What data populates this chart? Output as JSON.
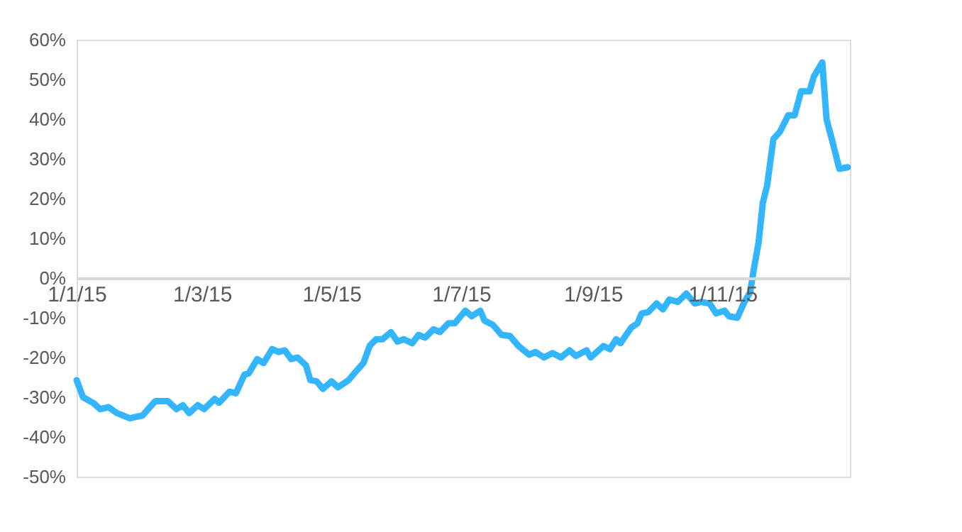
{
  "chart_data": {
    "type": "line",
    "x": [
      "2015-01-01",
      "2015-01-04",
      "2015-01-09",
      "2015-01-12",
      "2015-01-16",
      "2015-01-20",
      "2015-01-26",
      "2015-02-01",
      "2015-02-07",
      "2015-02-13",
      "2015-02-17",
      "2015-02-20",
      "2015-02-23",
      "2015-02-27",
      "2015-03-02",
      "2015-03-07",
      "2015-03-09",
      "2015-03-14",
      "2015-03-17",
      "2015-03-21",
      "2015-03-23",
      "2015-03-27",
      "2015-03-30",
      "2015-04-03",
      "2015-04-06",
      "2015-04-09",
      "2015-04-12",
      "2015-04-15",
      "2015-04-19",
      "2015-04-21",
      "2015-04-24",
      "2015-04-27",
      "2015-05-01",
      "2015-05-04",
      "2015-05-09",
      "2015-05-13",
      "2015-05-16",
      "2015-05-19",
      "2015-05-22",
      "2015-05-25",
      "2015-05-29",
      "2015-06-01",
      "2015-06-04",
      "2015-06-08",
      "2015-06-11",
      "2015-06-14",
      "2015-06-18",
      "2015-06-21",
      "2015-06-25",
      "2015-06-28",
      "2015-07-03",
      "2015-07-06",
      "2015-07-10",
      "2015-07-12",
      "2015-07-16",
      "2015-07-20",
      "2015-07-24",
      "2015-07-28",
      "2015-08-02",
      "2015-08-05",
      "2015-08-09",
      "2015-08-13",
      "2015-08-17",
      "2015-08-21",
      "2015-08-24",
      "2015-08-29",
      "2015-08-31",
      "2015-09-06",
      "2015-09-09",
      "2015-09-12",
      "2015-09-14",
      "2015-09-19",
      "2015-09-22",
      "2015-09-24",
      "2015-09-27",
      "2015-10-01",
      "2015-10-04",
      "2015-10-07",
      "2015-10-11",
      "2015-10-15",
      "2015-10-19",
      "2015-10-22",
      "2015-10-26",
      "2015-10-29",
      "2015-11-02",
      "2015-11-04",
      "2015-11-08",
      "2015-11-11",
      "2015-11-14",
      "2015-11-16",
      "2015-11-18",
      "2015-11-20",
      "2015-11-22",
      "2015-11-25",
      "2015-11-28",
      "2015-12-02",
      "2015-12-05",
      "2015-12-08",
      "2015-12-12",
      "2015-12-14",
      "2015-12-18",
      "2015-12-20",
      "2015-12-23",
      "2015-12-26",
      "2015-12-30"
    ],
    "series": [
      {
        "color": "#33b5ff",
        "values": [
          -25.7,
          -30,
          -31.5,
          -33,
          -32.5,
          -34,
          -35.3,
          -34.6,
          -31,
          -31,
          -33,
          -32,
          -34,
          -32,
          -33,
          -30.4,
          -31.4,
          -28.6,
          -29,
          -24.3,
          -24,
          -20.4,
          -21.4,
          -17.9,
          -18.6,
          -18.2,
          -20.4,
          -20,
          -22,
          -25.7,
          -26,
          -27.9,
          -26,
          -27.5,
          -25.7,
          -23.2,
          -21.4,
          -17,
          -15.4,
          -15.4,
          -13.6,
          -16,
          -15.4,
          -16.4,
          -14.3,
          -15,
          -12.9,
          -13.6,
          -11.4,
          -11.4,
          -8.2,
          -9.6,
          -8.2,
          -10.7,
          -11.8,
          -14.3,
          -14.6,
          -17.1,
          -19.3,
          -18.6,
          -20,
          -18.9,
          -20,
          -18.2,
          -19.6,
          -18.2,
          -20,
          -17.1,
          -17.9,
          -15.4,
          -16.4,
          -12.5,
          -11.4,
          -8.9,
          -8.6,
          -6.4,
          -7.9,
          -5.4,
          -6,
          -3.9,
          -6.4,
          -6,
          -6.4,
          -8.9,
          -8.2,
          -9.6,
          -10,
          -6.4,
          -3.6,
          2.9,
          8.9,
          18.9,
          23.2,
          35,
          36.8,
          41,
          41,
          47,
          47,
          50.7,
          54.3,
          40,
          33.9,
          27.5,
          27.9
        ]
      }
    ],
    "xlim": [
      "2015-01-01",
      "2015-12-31"
    ],
    "xticks": [
      {
        "value": "2015-01-01",
        "label": "1/1/15"
      },
      {
        "value": "2015-03-01",
        "label": "1/3/15"
      },
      {
        "value": "2015-05-01",
        "label": "1/5/15"
      },
      {
        "value": "2015-07-01",
        "label": "1/7/15"
      },
      {
        "value": "2015-09-01",
        "label": "1/9/15"
      },
      {
        "value": "2015-11-01",
        "label": "1/11/15"
      }
    ],
    "ylim": [
      -50,
      60
    ],
    "yticks": [
      {
        "value": -50,
        "label": "-50%"
      },
      {
        "value": -40,
        "label": "-40%"
      },
      {
        "value": -30,
        "label": "-30%"
      },
      {
        "value": -20,
        "label": "-20%"
      },
      {
        "value": -10,
        "label": "-10%"
      },
      {
        "value": 0,
        "label": "0%"
      },
      {
        "value": 10,
        "label": "10%"
      },
      {
        "value": 20,
        "label": "20%"
      },
      {
        "value": 30,
        "label": "30%"
      },
      {
        "value": 40,
        "label": "40%"
      },
      {
        "value": 50,
        "label": "50%"
      },
      {
        "value": 60,
        "label": "60%"
      }
    ],
    "grid": false,
    "marker": "none",
    "line_style": "solid"
  }
}
